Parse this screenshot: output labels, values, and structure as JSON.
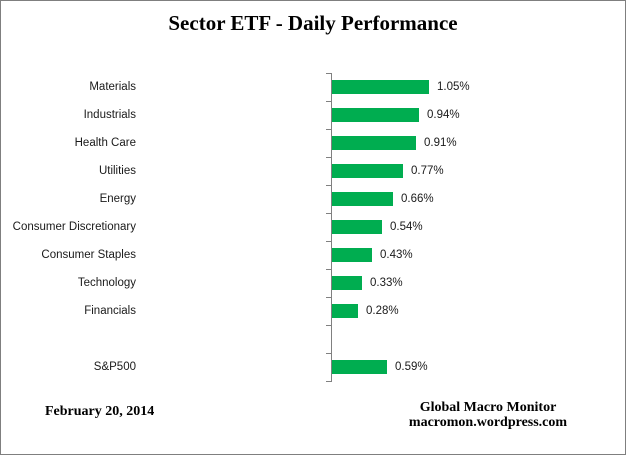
{
  "title": "Sector ETF - Daily Performance",
  "footer": {
    "date": "February 20, 2014",
    "source_line1": "Global Macro Monitor",
    "source_line2": "macromon.wordpress.com"
  },
  "chart_data": {
    "type": "bar",
    "orientation": "horizontal",
    "title": "Sector ETF - Daily Performance",
    "categories": [
      "Materials",
      "Industrials",
      "Health Care",
      "Utilities",
      "Energy",
      "Consumer Discretionary",
      "Consumer Staples",
      "Technology",
      "Financials",
      "",
      "S&P500"
    ],
    "values": [
      1.05,
      0.94,
      0.91,
      0.77,
      0.66,
      0.54,
      0.43,
      0.33,
      0.28,
      null,
      0.59
    ],
    "value_labels": [
      "1.05%",
      "0.94%",
      "0.91%",
      "0.77%",
      "0.66%",
      "0.54%",
      "0.43%",
      "0.33%",
      "0.28%",
      "",
      "0.59%"
    ],
    "unit": "%",
    "xlim": [
      0,
      1.15
    ],
    "grid": false,
    "legend": false,
    "bar_color": "#00AD50",
    "axis_color": "#808080",
    "label_color": "#1a1a1a"
  }
}
